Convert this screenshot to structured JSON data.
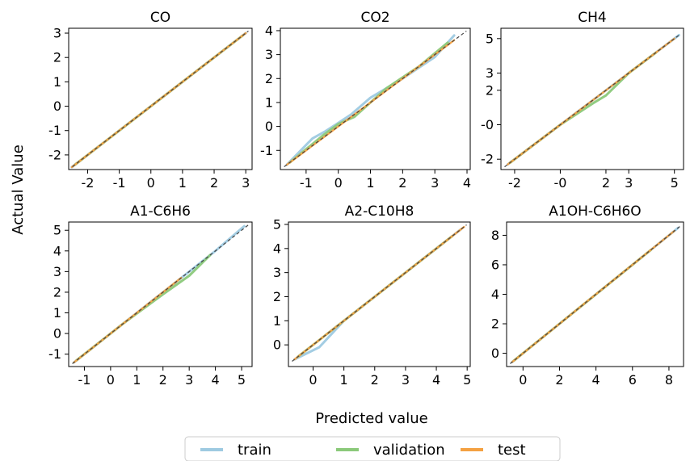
{
  "figure": {
    "ylabel": "Actual Value",
    "xlabel": "Predicted value",
    "legend": {
      "placement": "bottom-center",
      "entries": [
        {
          "label": "train",
          "color": "#9ecae1"
        },
        {
          "label": "validation",
          "color": "#8bc97a"
        },
        {
          "label": "test",
          "color": "#f4a142"
        }
      ]
    },
    "reference_line": {
      "style": "dashed",
      "color": "#444444"
    }
  },
  "chart_data": [
    {
      "type": "line",
      "title": "CO",
      "xlim": [
        -2.6,
        3.2
      ],
      "ylim": [
        -2.6,
        3.2
      ],
      "xticks": [
        -2,
        -1,
        0,
        1,
        2,
        3
      ],
      "xtick_labels": [
        "-2",
        "-1",
        "0",
        "1",
        "2",
        "3"
      ],
      "yticks": [
        -2,
        -1,
        0,
        1,
        2,
        3
      ],
      "ytick_labels": [
        "-2",
        "-1",
        "0",
        "1",
        "2",
        "3"
      ],
      "series": [
        {
          "name": "train",
          "x": [
            -2.5,
            -1.5,
            -0.5,
            0.5,
            1.5,
            2.5,
            3.0
          ],
          "y": [
            -2.5,
            -1.5,
            -0.5,
            0.5,
            1.5,
            2.5,
            3.0
          ]
        },
        {
          "name": "validation",
          "x": [
            -2.4,
            -1.2,
            0.0,
            1.2,
            2.0,
            2.9
          ],
          "y": [
            -2.4,
            -1.2,
            0.0,
            1.2,
            2.0,
            2.9
          ]
        },
        {
          "name": "test",
          "x": [
            -2.5,
            -1.0,
            0.5,
            2.0,
            3.0
          ],
          "y": [
            -2.5,
            -1.0,
            0.5,
            2.0,
            3.0
          ]
        }
      ]
    },
    {
      "type": "line",
      "title": "CO2",
      "xlim": [
        -1.8,
        4.1
      ],
      "ylim": [
        -1.8,
        4.1
      ],
      "xticks": [
        -1,
        0,
        1,
        2,
        3,
        4
      ],
      "xtick_labels": [
        "-1",
        "0",
        "1",
        "2",
        "3",
        "4"
      ],
      "yticks": [
        -1,
        0,
        1,
        2,
        3,
        4
      ],
      "ytick_labels": [
        "-1",
        "0",
        "1",
        "2",
        "3",
        "4"
      ],
      "series": [
        {
          "name": "train",
          "x": [
            -1.6,
            -0.8,
            -0.4,
            0.0,
            0.4,
            1.0,
            2.0,
            3.0,
            3.6
          ],
          "y": [
            -1.6,
            -0.5,
            -0.2,
            0.15,
            0.5,
            1.2,
            2.0,
            2.9,
            3.8
          ]
        },
        {
          "name": "validation",
          "x": [
            -1.5,
            -0.5,
            0.0,
            0.5,
            1.5,
            2.5,
            3.4
          ],
          "y": [
            -1.5,
            -0.4,
            0.1,
            0.4,
            1.6,
            2.5,
            3.5
          ]
        },
        {
          "name": "test",
          "x": [
            -1.6,
            -0.5,
            0.5,
            1.5,
            2.5,
            3.6
          ],
          "y": [
            -1.6,
            -0.5,
            0.5,
            1.5,
            2.5,
            3.6
          ]
        }
      ]
    },
    {
      "type": "line",
      "title": "CH4",
      "xlim": [
        -2.6,
        5.4
      ],
      "ylim": [
        -2.6,
        5.6
      ],
      "xticks": [
        -2,
        0,
        2,
        3,
        5
      ],
      "xtick_labels": [
        "-2",
        "-0",
        "2",
        "3",
        "5"
      ],
      "yticks": [
        -2,
        0,
        2,
        3,
        5
      ],
      "ytick_labels": [
        "-2",
        "-0",
        "2",
        "3",
        "5"
      ],
      "series": [
        {
          "name": "train",
          "x": [
            -2.3,
            -0.5,
            1.0,
            2.5,
            4.0,
            5.2
          ],
          "y": [
            -2.3,
            -0.5,
            1.0,
            2.5,
            4.0,
            5.2
          ]
        },
        {
          "name": "validation",
          "x": [
            -2.2,
            0.0,
            1.5,
            2.0,
            3.0,
            4.2
          ],
          "y": [
            -2.2,
            0.0,
            1.3,
            1.7,
            3.0,
            4.2
          ]
        },
        {
          "name": "test",
          "x": [
            -2.3,
            0.0,
            2.0,
            3.5,
            5.0
          ],
          "y": [
            -2.3,
            0.0,
            2.0,
            3.5,
            5.0
          ]
        }
      ]
    },
    {
      "type": "line",
      "title": "A1-C6H6",
      "xlim": [
        -1.6,
        5.4
      ],
      "ylim": [
        -1.6,
        5.4
      ],
      "xticks": [
        -1,
        0,
        1,
        2,
        3,
        4,
        5
      ],
      "xtick_labels": [
        "-1",
        "0",
        "1",
        "2",
        "3",
        "4",
        "5"
      ],
      "yticks": [
        -1,
        0,
        1,
        2,
        3,
        4,
        5
      ],
      "ytick_labels": [
        "-1",
        "0",
        "1",
        "2",
        "3",
        "4",
        "5"
      ],
      "series": [
        {
          "name": "train",
          "x": [
            -1.4,
            0.0,
            1.5,
            3.0,
            4.0,
            5.1
          ],
          "y": [
            -1.4,
            0.0,
            1.5,
            3.0,
            4.0,
            5.2
          ]
        },
        {
          "name": "validation",
          "x": [
            -1.3,
            0.5,
            2.0,
            3.0,
            3.8
          ],
          "y": [
            -1.3,
            0.5,
            1.9,
            2.8,
            3.8
          ]
        },
        {
          "name": "test",
          "x": [
            -1.4,
            0.0,
            1.5,
            2.7
          ],
          "y": [
            -1.4,
            0.0,
            1.5,
            2.7
          ]
        }
      ]
    },
    {
      "type": "line",
      "title": "A2-C10H8",
      "xlim": [
        -0.8,
        5.1
      ],
      "ylim": [
        -0.9,
        5.1
      ],
      "xticks": [
        0,
        1,
        2,
        3,
        4,
        5
      ],
      "xtick_labels": [
        "0",
        "1",
        "2",
        "3",
        "4",
        "5"
      ],
      "yticks": [
        0,
        1,
        2,
        3,
        4,
        5
      ],
      "ytick_labels": [
        "0",
        "1",
        "2",
        "3",
        "4",
        "5"
      ],
      "series": [
        {
          "name": "train",
          "x": [
            -0.6,
            0.2,
            1.0,
            2.0,
            2.6,
            3.5,
            4.8
          ],
          "y": [
            -0.6,
            -0.1,
            1.0,
            2.0,
            2.6,
            3.5,
            4.8
          ]
        },
        {
          "name": "validation",
          "x": [
            -0.5,
            0.5,
            1.5,
            2.5,
            3.5,
            4.5
          ],
          "y": [
            -0.5,
            0.5,
            1.5,
            2.5,
            3.5,
            4.5
          ]
        },
        {
          "name": "test",
          "x": [
            -0.6,
            0.5,
            1.5,
            2.5,
            3.5,
            4.9
          ],
          "y": [
            -0.6,
            0.5,
            1.5,
            2.5,
            3.5,
            4.9
          ]
        }
      ]
    },
    {
      "type": "line",
      "title": "A1OH-C6H6O",
      "xlim": [
        -0.9,
        8.8
      ],
      "ylim": [
        -0.9,
        8.9
      ],
      "xticks": [
        0,
        2,
        4,
        6,
        8
      ],
      "xtick_labels": [
        "0",
        "2",
        "4",
        "6",
        "8"
      ],
      "yticks": [
        0,
        2,
        4,
        6,
        8
      ],
      "ytick_labels": [
        "0",
        "2",
        "4",
        "6",
        "8"
      ],
      "series": [
        {
          "name": "train",
          "x": [
            -0.6,
            2.0,
            4.0,
            6.0,
            8.5
          ],
          "y": [
            -0.6,
            2.0,
            4.0,
            6.0,
            8.5
          ]
        },
        {
          "name": "validation",
          "x": [
            -0.5,
            2.0,
            4.5,
            7.0
          ],
          "y": [
            -0.5,
            2.0,
            4.5,
            7.0
          ]
        },
        {
          "name": "test",
          "x": [
            -0.6,
            1.5,
            3.5,
            5.5,
            7.5,
            8.3
          ],
          "y": [
            -0.6,
            1.5,
            3.5,
            5.5,
            7.5,
            8.3
          ]
        }
      ]
    }
  ]
}
